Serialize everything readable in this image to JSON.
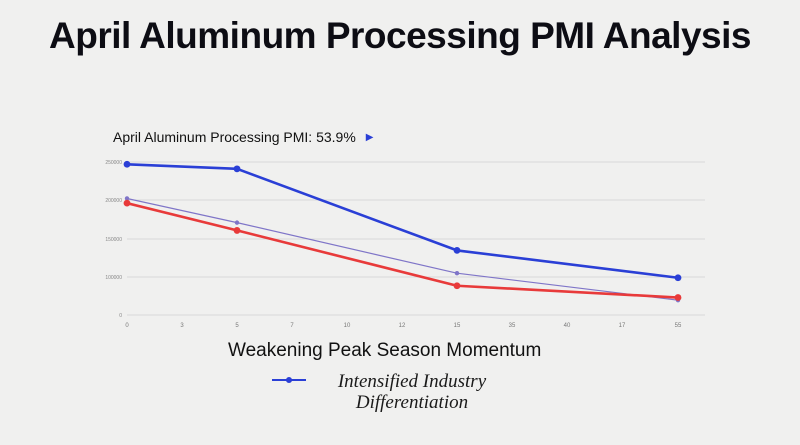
{
  "chart_data": {
    "type": "line",
    "title": "April Aluminum Processing PMI Analysis",
    "subtitle": "April Aluminum Processing PMI: 53.9%",
    "xlabel": "",
    "ylabel": "",
    "x_ticks": [
      "0",
      "3",
      "5",
      "7",
      "10",
      "12",
      "15",
      "35",
      "40",
      "17",
      "55"
    ],
    "y_ticks": [
      "0",
      "100000",
      "150000",
      "200000",
      "250000"
    ],
    "annotation": "Weakening Peak Season Momentum",
    "legend": [
      "Intensified Industry Differentiation"
    ],
    "series": [
      {
        "name": "Intensified Industry Differentiation",
        "color": "#2a3fd6",
        "points": [
          [
            0,
            247000
          ],
          [
            5,
            241000
          ],
          [
            15,
            135000
          ],
          [
            55,
            98000
          ]
        ]
      },
      {
        "color": "#e83a3a",
        "points": [
          [
            0,
            196000
          ],
          [
            5,
            161000
          ],
          [
            15,
            77000
          ],
          [
            55,
            46000
          ]
        ]
      },
      {
        "color": "#7f75c8",
        "points": [
          [
            0,
            202000
          ],
          [
            5,
            171000
          ],
          [
            15,
            105000
          ],
          [
            55,
            39000
          ]
        ]
      }
    ]
  }
}
